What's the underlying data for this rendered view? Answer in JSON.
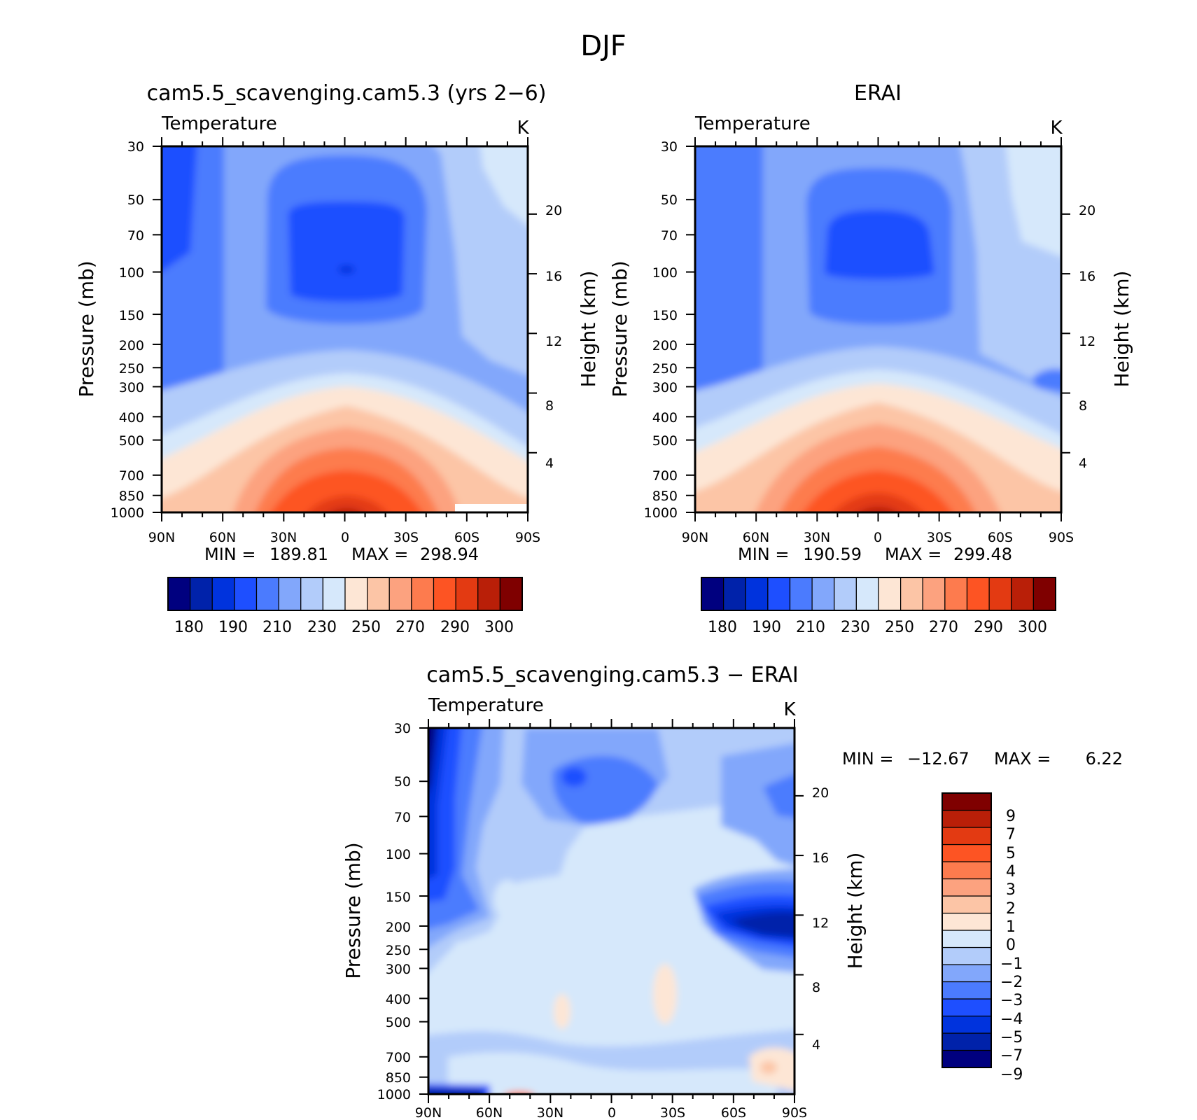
{
  "figure": {
    "title": "DJF",
    "accent_colors": {
      "cold_extreme": "#00007f",
      "warm_extreme": "#7f0000",
      "neutral_light": "#d6e8fb",
      "neutral_warm": "#fde6d5"
    }
  },
  "chart_data": [
    {
      "type": "heatmap",
      "title": "cam5.5_scavenging.cam5.3 (yrs 2−6)",
      "subtitle": "Temperature",
      "units": "K",
      "ylabel": "Pressure (mb)",
      "ylabel_right": "Height (km)",
      "x_ticklabels": [
        "90N",
        "60N",
        "30N",
        "0",
        "30S",
        "60S",
        "90S"
      ],
      "x_values": [
        -90,
        -60,
        -30,
        0,
        30,
        60,
        90
      ],
      "pressure_levels": [
        30,
        50,
        70,
        100,
        150,
        200,
        250,
        300,
        400,
        500,
        700,
        850,
        1000
      ],
      "pressure_ticklabels": [
        "30",
        "50",
        "70",
        "100",
        "150",
        "200",
        "250",
        "300",
        "400",
        "500",
        "700",
        "850",
        "1000"
      ],
      "height_ticklabels": [
        "20",
        "16",
        "12",
        "8",
        "4"
      ],
      "height_values_km": [
        20,
        16,
        12,
        8,
        4
      ],
      "stats": {
        "min_label": "MIN =",
        "min": "189.81",
        "max_label": "MAX =",
        "max": "298.94"
      },
      "colorbar": {
        "orientation": "horizontal",
        "colors": [
          "#00007f",
          "#0022aa",
          "#0033dd",
          "#1e4fff",
          "#4b7bfe",
          "#82a7fb",
          "#b2ccfa",
          "#d6e8fb",
          "#fde6d5",
          "#fcc5a6",
          "#fca27f",
          "#fd7b4e",
          "#fd5423",
          "#e33a12",
          "#b91f08",
          "#7f0000"
        ],
        "labels": [
          "180",
          "190",
          "210",
          "230",
          "250",
          "270",
          "290",
          "300"
        ]
      }
    },
    {
      "type": "heatmap",
      "title": "ERAI",
      "subtitle": "Temperature",
      "units": "K",
      "ylabel": "Pressure (mb)",
      "ylabel_right": "Height (km)",
      "x_ticklabels": [
        "90N",
        "60N",
        "30N",
        "0",
        "30S",
        "60S",
        "90S"
      ],
      "x_values": [
        -90,
        -60,
        -30,
        0,
        30,
        60,
        90
      ],
      "pressure_levels": [
        30,
        50,
        70,
        100,
        150,
        200,
        250,
        300,
        400,
        500,
        700,
        850,
        1000
      ],
      "pressure_ticklabels": [
        "30",
        "50",
        "70",
        "100",
        "150",
        "200",
        "250",
        "300",
        "400",
        "500",
        "700",
        "850",
        "1000"
      ],
      "height_ticklabels": [
        "20",
        "16",
        "12",
        "8",
        "4"
      ],
      "height_values_km": [
        20,
        16,
        12,
        8,
        4
      ],
      "stats": {
        "min_label": "MIN =",
        "min": "190.59",
        "max_label": "MAX =",
        "max": "299.48"
      },
      "colorbar": {
        "orientation": "horizontal",
        "colors": [
          "#00007f",
          "#0022aa",
          "#0033dd",
          "#1e4fff",
          "#4b7bfe",
          "#82a7fb",
          "#b2ccfa",
          "#d6e8fb",
          "#fde6d5",
          "#fcc5a6",
          "#fca27f",
          "#fd7b4e",
          "#fd5423",
          "#e33a12",
          "#b91f08",
          "#7f0000"
        ],
        "labels": [
          "180",
          "190",
          "210",
          "230",
          "250",
          "270",
          "290",
          "300"
        ]
      }
    },
    {
      "type": "heatmap",
      "title": "cam5.5_scavenging.cam5.3 − ERAI",
      "subtitle": "Temperature",
      "units": "K",
      "ylabel": "Pressure (mb)",
      "ylabel_right": "Height (km)",
      "x_ticklabels": [
        "90N",
        "60N",
        "30N",
        "0",
        "30S",
        "60S",
        "90S"
      ],
      "x_values": [
        -90,
        -60,
        -30,
        0,
        30,
        60,
        90
      ],
      "pressure_levels": [
        30,
        50,
        70,
        100,
        150,
        200,
        250,
        300,
        400,
        500,
        700,
        850,
        1000
      ],
      "pressure_ticklabels": [
        "30",
        "50",
        "70",
        "100",
        "150",
        "200",
        "250",
        "300",
        "400",
        "500",
        "700",
        "850",
        "1000"
      ],
      "height_ticklabels": [
        "20",
        "16",
        "12",
        "8",
        "4"
      ],
      "height_values_km": [
        20,
        16,
        12,
        8,
        4
      ],
      "stats": {
        "min_label": "MIN =",
        "min": "−12.67",
        "max_label": "MAX =",
        "max": "6.22"
      },
      "colorbar": {
        "orientation": "vertical",
        "colors_bottom_to_top": [
          "#00007f",
          "#0022aa",
          "#0033dd",
          "#1e4fff",
          "#4b7bfe",
          "#82a7fb",
          "#b2ccfa",
          "#d6e8fb",
          "#fde6d5",
          "#fcc5a6",
          "#fca27f",
          "#fd7b4e",
          "#fd5423",
          "#e33a12",
          "#b91f08",
          "#7f0000"
        ],
        "labels_top_to_bottom": [
          "9",
          "7",
          "5",
          "4",
          "3",
          "2",
          "1",
          "0",
          "−1",
          "−2",
          "−3",
          "−4",
          "−5",
          "−7",
          "−9"
        ]
      }
    }
  ]
}
